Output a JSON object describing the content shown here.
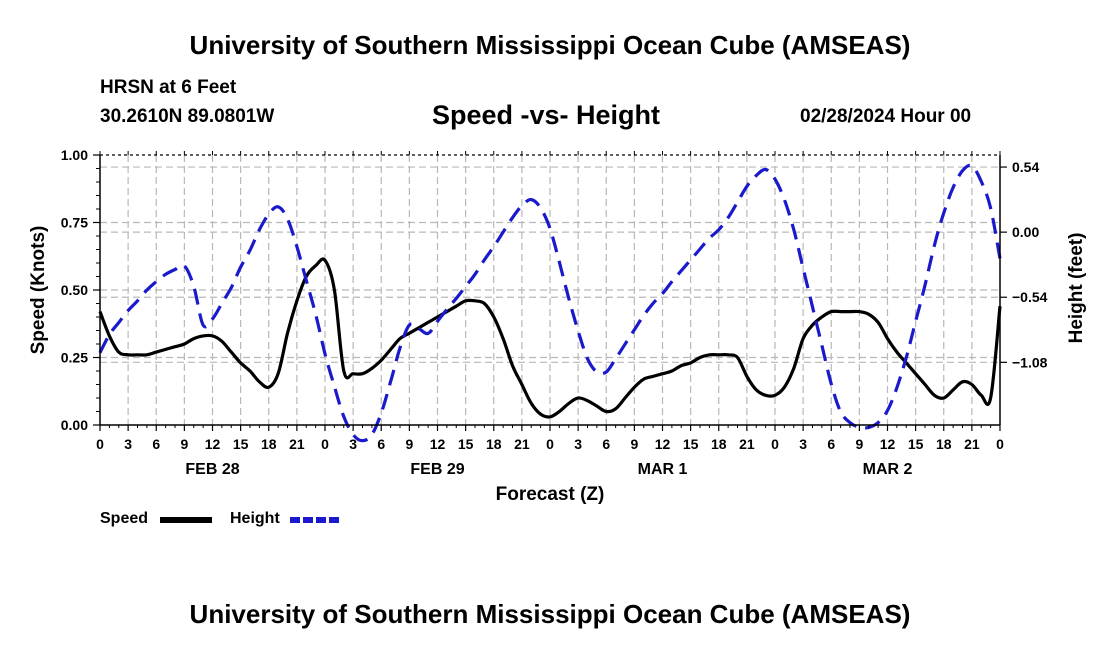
{
  "header": {
    "title": "University of Southern Mississippi Ocean Cube (AMSEAS)",
    "station": "HRSN at 6 Feet",
    "coords": "30.2610N  89.0801W",
    "subtitle": "Speed -vs- Height",
    "datetime": "02/28/2024 Hour 00"
  },
  "footer": {
    "title": "University of Southern Mississippi Ocean Cube (AMSEAS)"
  },
  "legend": {
    "speed_label": "Speed",
    "height_label": "Height"
  },
  "colors": {
    "speed": "#000000",
    "height": "#1a1acc",
    "grid": "#b8b8b8"
  },
  "chart_data": {
    "type": "line",
    "title": "Speed -vs- Height",
    "xlabel": "Forecast (Z)",
    "ylabel": "Speed (Knots)",
    "y2label": "Height (feet)",
    "xlim": [
      0,
      96
    ],
    "ylim": [
      0,
      1
    ],
    "y2lim": [
      -1.6,
      0.64
    ],
    "x_tick_labels": [
      "0",
      "3",
      "6",
      "9",
      "12",
      "15",
      "18",
      "21",
      "0",
      "3",
      "6",
      "9",
      "12",
      "15",
      "18",
      "21",
      "0",
      "3",
      "6",
      "9",
      "12",
      "15",
      "18",
      "21",
      "0",
      "3",
      "6",
      "9",
      "12",
      "15",
      "18",
      "21",
      "0"
    ],
    "date_labels": [
      {
        "label": "FEB 28",
        "x": 12
      },
      {
        "label": "FEB 29",
        "x": 36
      },
      {
        "label": "MAR 1",
        "x": 60
      },
      {
        "label": "MAR 2",
        "x": 84
      }
    ],
    "y_ticks": [
      {
        "value": 0,
        "label": "0.00"
      },
      {
        "value": 0.25,
        "label": "0.25"
      },
      {
        "value": 0.5,
        "label": "0.50"
      },
      {
        "value": 0.75,
        "label": "0.75"
      },
      {
        "value": 1,
        "label": "1.00"
      }
    ],
    "y2_ticks": [
      {
        "value": 0.54,
        "label": "0.54"
      },
      {
        "value": 0,
        "label": "0.00"
      },
      {
        "value": -0.54,
        "label": "−0.54"
      },
      {
        "value": -1.08,
        "label": "−1.08"
      }
    ],
    "series": [
      {
        "name": "Speed",
        "axis": "left",
        "style": "solid",
        "x": [
          0,
          1,
          2,
          3,
          4,
          5,
          6,
          7,
          8,
          9,
          10,
          11,
          12,
          13,
          14,
          15,
          16,
          17,
          18,
          19,
          20,
          21,
          22,
          23,
          24,
          25,
          26,
          27,
          28,
          29,
          30,
          31,
          32,
          33,
          34,
          35,
          36,
          37,
          38,
          39,
          40,
          41,
          42,
          43,
          44,
          45,
          46,
          47,
          48,
          49,
          50,
          51,
          52,
          53,
          54,
          55,
          56,
          57,
          58,
          59,
          60,
          61,
          62,
          63,
          64,
          65,
          66,
          67,
          68,
          69,
          70,
          71,
          72,
          73,
          74,
          75,
          76,
          77,
          78,
          79,
          80,
          81,
          82,
          83,
          84,
          85,
          86,
          87,
          88,
          89,
          90,
          91,
          92,
          93,
          94,
          95,
          96
        ],
        "values": [
          0.42,
          0.33,
          0.27,
          0.26,
          0.26,
          0.26,
          0.27,
          0.28,
          0.29,
          0.3,
          0.32,
          0.33,
          0.33,
          0.31,
          0.27,
          0.23,
          0.2,
          0.16,
          0.14,
          0.19,
          0.34,
          0.46,
          0.55,
          0.59,
          0.61,
          0.5,
          0.2,
          0.19,
          0.19,
          0.21,
          0.24,
          0.28,
          0.32,
          0.34,
          0.36,
          0.38,
          0.4,
          0.42,
          0.44,
          0.46,
          0.46,
          0.45,
          0.4,
          0.32,
          0.22,
          0.15,
          0.08,
          0.04,
          0.03,
          0.05,
          0.08,
          0.1,
          0.09,
          0.07,
          0.05,
          0.06,
          0.1,
          0.14,
          0.17,
          0.18,
          0.19,
          0.2,
          0.22,
          0.23,
          0.25,
          0.26,
          0.26,
          0.26,
          0.25,
          0.18,
          0.13,
          0.11,
          0.11,
          0.14,
          0.21,
          0.32,
          0.37,
          0.4,
          0.42,
          0.42,
          0.42,
          0.42,
          0.41,
          0.38,
          0.32,
          0.27,
          0.23,
          0.19,
          0.15,
          0.11,
          0.1,
          0.13,
          0.16,
          0.15,
          0.11,
          0.1,
          0.44
        ]
      },
      {
        "name": "Height",
        "axis": "right",
        "style": "dashed",
        "x": [
          0,
          1,
          2,
          3,
          4,
          5,
          6,
          7,
          8,
          9,
          10,
          11,
          12,
          13,
          14,
          15,
          16,
          17,
          18,
          19,
          20,
          21,
          22,
          23,
          24,
          25,
          26,
          27,
          28,
          29,
          30,
          31,
          32,
          33,
          34,
          35,
          36,
          37,
          38,
          39,
          40,
          41,
          42,
          43,
          44,
          45,
          46,
          47,
          48,
          49,
          50,
          51,
          52,
          53,
          54,
          55,
          56,
          57,
          58,
          59,
          60,
          61,
          62,
          63,
          64,
          65,
          66,
          67,
          68,
          69,
          70,
          71,
          72,
          73,
          74,
          75,
          76,
          77,
          78,
          79,
          80,
          81,
          82,
          83,
          84,
          85,
          86,
          87,
          88,
          89,
          90,
          91,
          92,
          93,
          94,
          95,
          96
        ],
        "values": [
          -1.0,
          -0.85,
          -0.75,
          -0.65,
          -0.57,
          -0.48,
          -0.41,
          -0.35,
          -0.31,
          -0.28,
          -0.45,
          -0.77,
          -0.72,
          -0.59,
          -0.46,
          -0.29,
          -0.15,
          0.02,
          0.15,
          0.21,
          0.11,
          -0.12,
          -0.4,
          -0.68,
          -1.01,
          -1.28,
          -1.53,
          -1.68,
          -1.73,
          -1.68,
          -1.5,
          -1.24,
          -0.96,
          -0.77,
          -0.8,
          -0.84,
          -0.74,
          -0.64,
          -0.55,
          -0.45,
          -0.35,
          -0.23,
          -0.12,
          0.0,
          0.12,
          0.22,
          0.27,
          0.2,
          0.03,
          -0.25,
          -0.55,
          -0.82,
          -1.05,
          -1.16,
          -1.16,
          -1.05,
          -0.93,
          -0.81,
          -0.69,
          -0.59,
          -0.51,
          -0.41,
          -0.32,
          -0.23,
          -0.14,
          -0.05,
          0.02,
          0.12,
          0.25,
          0.38,
          0.47,
          0.52,
          0.44,
          0.27,
          0.02,
          -0.3,
          -0.62,
          -0.94,
          -1.26,
          -1.49,
          -1.58,
          -1.62,
          -1.62,
          -1.58,
          -1.48,
          -1.29,
          -1.04,
          -0.74,
          -0.44,
          -0.11,
          0.16,
          0.37,
          0.51,
          0.55,
          0.42,
          0.2,
          -0.22
        ]
      }
    ]
  }
}
